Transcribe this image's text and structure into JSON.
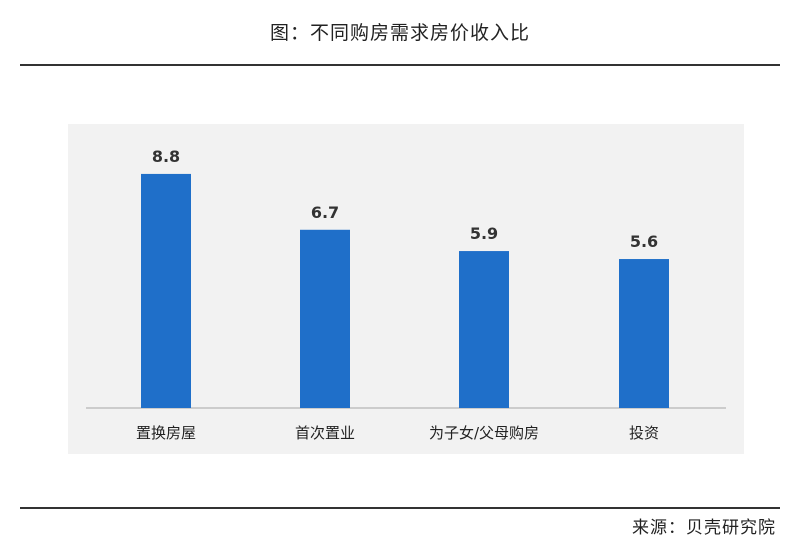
{
  "title": "图：不同购房需求房价收入比",
  "source": "来源：贝壳研究院",
  "colors": {
    "bar": "#1f6fc9",
    "plot_background": "#f2f2f2",
    "axis": "#bfbfbf"
  },
  "chart_data": {
    "type": "bar",
    "title": "图：不同购房需求房价收入比",
    "categories": [
      "置换房屋",
      "首次置业",
      "为子女/父母购房",
      "投资"
    ],
    "values": [
      8.8,
      6.7,
      5.9,
      5.6
    ],
    "data_labels": [
      "8.8",
      "6.7",
      "5.9",
      "5.6"
    ],
    "xlabel": "",
    "ylabel": "",
    "ylim": [
      0,
      10
    ],
    "grid": false,
    "legend": "none"
  }
}
